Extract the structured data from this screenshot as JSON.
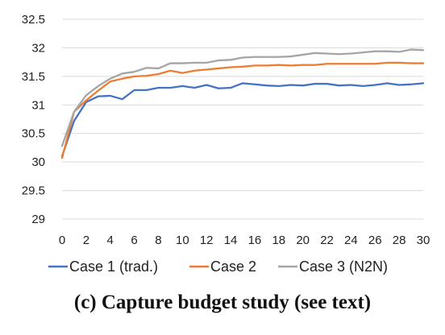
{
  "caption": "(c) Capture budget study (see text)",
  "chart_data": {
    "type": "line",
    "xlabel": "",
    "ylabel": "",
    "x": [
      0,
      1,
      2,
      3,
      4,
      5,
      6,
      7,
      8,
      9,
      10,
      11,
      12,
      13,
      14,
      15,
      16,
      17,
      18,
      19,
      20,
      21,
      22,
      23,
      24,
      25,
      26,
      27,
      28,
      29,
      30
    ],
    "xticks": [
      0,
      2,
      4,
      6,
      8,
      10,
      12,
      14,
      16,
      18,
      20,
      22,
      24,
      26,
      28,
      30
    ],
    "xlim": [
      0,
      30
    ],
    "ylim": [
      29,
      32.5
    ],
    "yticks": [
      "29",
      "29.5",
      "30",
      "30.5",
      "31",
      "31.5",
      "32",
      "32.5"
    ],
    "grid": "horizontal",
    "legend_position": "bottom",
    "series": [
      {
        "name": "Case 1 (trad.)",
        "color": "#4472C4",
        "values": [
          30.1,
          30.72,
          31.05,
          31.15,
          31.16,
          31.1,
          31.26,
          31.26,
          31.3,
          31.3,
          31.33,
          31.3,
          31.35,
          31.29,
          31.3,
          31.38,
          31.36,
          31.34,
          31.33,
          31.35,
          31.34,
          31.37,
          31.37,
          31.34,
          31.35,
          31.33,
          31.35,
          31.38,
          31.35,
          31.36,
          31.38
        ]
      },
      {
        "name": "Case 2",
        "color": "#ED7D31",
        "values": [
          30.07,
          30.88,
          31.08,
          31.25,
          31.41,
          31.46,
          31.5,
          31.51,
          31.54,
          31.6,
          31.56,
          31.6,
          31.62,
          31.64,
          31.66,
          31.67,
          31.69,
          31.69,
          31.7,
          31.69,
          31.7,
          31.7,
          31.72,
          31.72,
          31.72,
          31.72,
          31.72,
          31.74,
          31.74,
          31.73,
          31.73
        ]
      },
      {
        "name": "Case 3 (N2N)",
        "color": "#A5A5A5",
        "values": [
          30.28,
          30.88,
          31.17,
          31.33,
          31.46,
          31.55,
          31.58,
          31.65,
          31.64,
          31.73,
          31.73,
          31.74,
          31.74,
          31.78,
          31.79,
          31.83,
          31.84,
          31.84,
          31.84,
          31.85,
          31.88,
          31.91,
          31.9,
          31.89,
          31.9,
          31.92,
          31.94,
          31.94,
          31.93,
          31.97,
          31.96
        ]
      }
    ]
  }
}
